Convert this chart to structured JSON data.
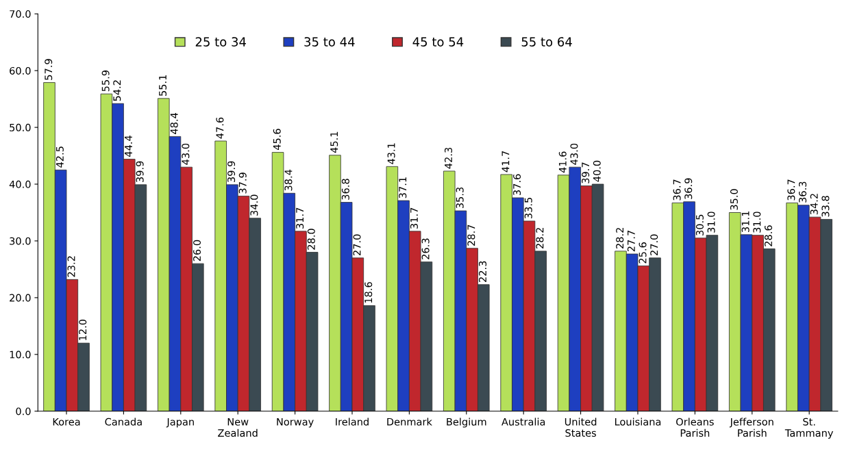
{
  "chart_data": {
    "type": "bar",
    "categories": [
      "Korea",
      "Canada",
      "Japan",
      "New\nZealand",
      "Norway",
      "Ireland",
      "Denmark",
      "Belgium",
      "Australia",
      "United\nStates",
      "Louisiana",
      "Orleans\nParish",
      "Jefferson\nParish",
      "St.\nTammany"
    ],
    "series": [
      {
        "name": "25 to 34",
        "color": "#b5e05a",
        "values": [
          57.9,
          55.9,
          55.1,
          47.6,
          45.6,
          45.1,
          43.1,
          42.3,
          41.7,
          41.6,
          28.2,
          36.7,
          35.0,
          36.7
        ],
        "value_labels": [
          "57.9",
          "55.9",
          "55.1",
          "47.6",
          "45.6",
          "45.1",
          "43.1",
          "42.3",
          "41.7",
          "41.6",
          "28.2",
          "36.7",
          "35.0",
          "36.7"
        ]
      },
      {
        "name": "35 to 44",
        "color": "#1e3fc0",
        "values": [
          42.5,
          54.2,
          48.4,
          39.9,
          38.4,
          36.8,
          37.1,
          35.3,
          37.6,
          43.0,
          27.7,
          36.9,
          31.1,
          36.3
        ],
        "value_labels": [
          "42.5",
          "54.2",
          "48.4",
          "39.9",
          "38.4",
          "36.8",
          "37.1",
          "35.3",
          "37.6",
          "43.0",
          "27.7",
          "36.9",
          "31.1",
          "36.3"
        ]
      },
      {
        "name": "45 to 54",
        "color": "#c0272d",
        "values": [
          23.2,
          44.4,
          43.0,
          37.9,
          31.7,
          27.0,
          31.7,
          28.7,
          33.5,
          39.7,
          25.6,
          30.5,
          31.0,
          34.2
        ],
        "value_labels": [
          "23.2",
          "44.4",
          "43.0",
          "37.9",
          "31.7",
          "27.0",
          "31.7",
          "28.7",
          "33.5",
          "39.7",
          "25.6",
          "30.5",
          "31.0",
          "34.2"
        ]
      },
      {
        "name": "55 to 64",
        "color": "#3b4a52",
        "values": [
          12.0,
          39.9,
          26.0,
          34.0,
          28.0,
          18.6,
          26.3,
          22.3,
          28.2,
          40.0,
          27.0,
          31.0,
          28.6,
          33.8
        ],
        "value_labels": [
          "12.0",
          "39.9",
          "26.0",
          "34.0",
          "28.0",
          "18.6",
          "26.3",
          "22.3",
          "28.2",
          "40.0",
          "27.0",
          "31.0",
          "28.6",
          "33.8"
        ]
      }
    ],
    "ylim": [
      0,
      70
    ],
    "yticks": [
      {
        "value": 0,
        "label": "0.0"
      },
      {
        "value": 10,
        "label": "10.0"
      },
      {
        "value": 20,
        "label": "20.0"
      },
      {
        "value": 30,
        "label": "30.0"
      },
      {
        "value": 40,
        "label": "40.0"
      },
      {
        "value": 50,
        "label": "50.0"
      },
      {
        "value": 60,
        "label": "60.0"
      },
      {
        "value": 70,
        "label": "70.0"
      }
    ],
    "legend": "top",
    "grid": false
  }
}
